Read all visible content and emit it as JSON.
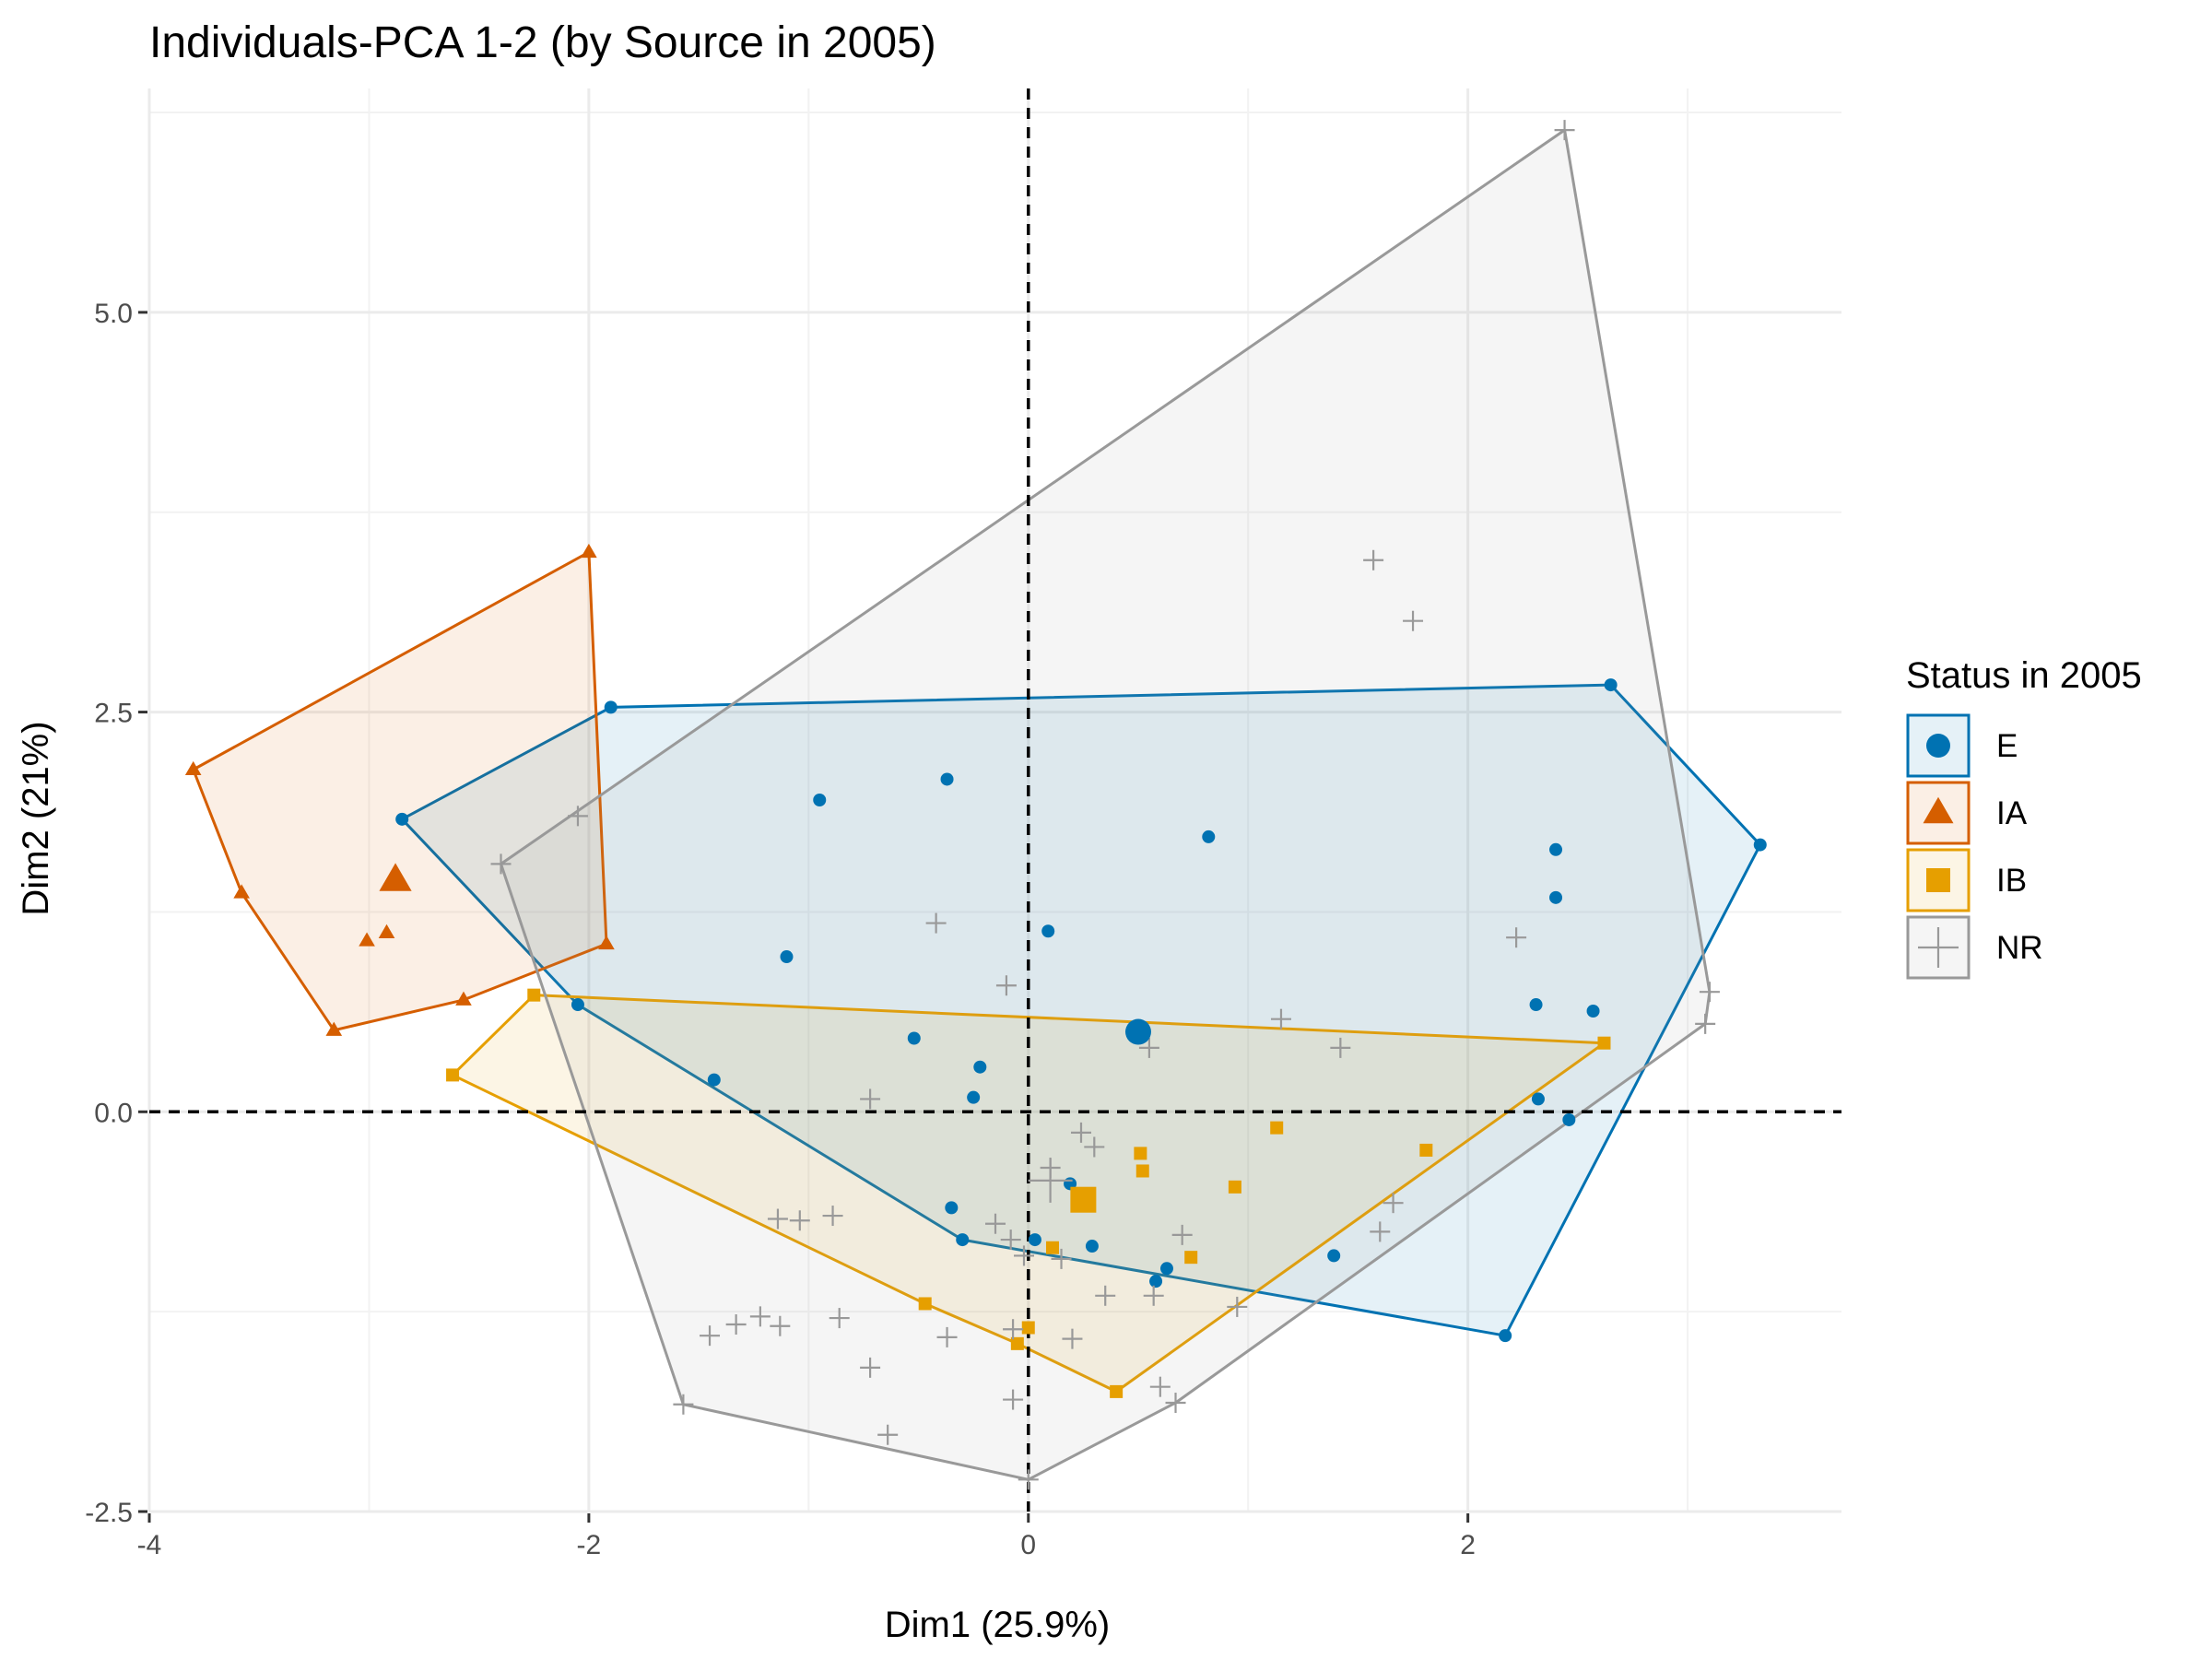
{
  "chart_data": {
    "type": "scatter",
    "title": "Individuals-PCA 1-2 (by Source in 2005)",
    "xlabel": "Dim1 (25.9%)",
    "ylabel": "Dim2 (21%)",
    "xlim": [
      -4.0,
      3.7
    ],
    "ylim": [
      -2.5,
      6.4
    ],
    "x_ticks": [
      -4,
      -2,
      0,
      2
    ],
    "x_tick_labels": [
      "-4",
      "-2",
      "0",
      "2"
    ],
    "y_ticks": [
      -2.5,
      0.0,
      2.5,
      5.0
    ],
    "y_tick_labels": [
      "-2.5",
      "0.0",
      "2.5",
      "5.0"
    ],
    "grid": true,
    "reference_lines": {
      "x": 0,
      "y": 0,
      "style": "dashed"
    },
    "legend": {
      "title": "Status in 2005",
      "position": "right",
      "entries": [
        "E",
        "IA",
        "IB",
        "NR"
      ]
    },
    "series": [
      {
        "name": "E",
        "color": "#0072B2",
        "marker": "circle",
        "centroid": [
          0.5,
          0.5
        ],
        "hull": [
          [
            -1.9,
            2.53
          ],
          [
            2.65,
            2.67
          ],
          [
            3.33,
            1.67
          ],
          [
            2.17,
            -1.4
          ],
          [
            -0.3,
            -0.8
          ],
          [
            -2.05,
            0.67
          ],
          [
            -2.85,
            1.83
          ]
        ],
        "points": [
          [
            -1.9,
            2.53
          ],
          [
            2.65,
            2.67
          ],
          [
            3.33,
            1.67
          ],
          [
            2.17,
            -1.4
          ],
          [
            -0.3,
            -0.8
          ],
          [
            -2.05,
            0.67
          ],
          [
            -2.85,
            1.83
          ],
          [
            -0.95,
            1.95
          ],
          [
            -0.37,
            2.08
          ],
          [
            0.82,
            1.72
          ],
          [
            0.09,
            1.13
          ],
          [
            -1.1,
            0.97
          ],
          [
            -1.43,
            0.2
          ],
          [
            -0.52,
            0.46
          ],
          [
            -0.22,
            0.28
          ],
          [
            -0.25,
            0.09
          ],
          [
            2.4,
            1.64
          ],
          [
            2.4,
            1.34
          ],
          [
            2.31,
            0.67
          ],
          [
            2.57,
            0.63
          ],
          [
            2.32,
            0.08
          ],
          [
            2.46,
            -0.05
          ],
          [
            0.19,
            -0.45
          ],
          [
            -0.35,
            -0.6
          ],
          [
            0.03,
            -0.8
          ],
          [
            0.29,
            -0.84
          ],
          [
            0.63,
            -0.98
          ],
          [
            0.58,
            -1.06
          ],
          [
            1.39,
            -0.9
          ]
        ]
      },
      {
        "name": "IA",
        "color": "#D55E00",
        "marker": "triangle",
        "centroid": [
          -2.88,
          1.45
        ],
        "hull": [
          [
            -2.0,
            3.5
          ],
          [
            -1.92,
            1.05
          ],
          [
            -2.57,
            0.7
          ],
          [
            -3.16,
            0.51
          ],
          [
            -3.58,
            1.37
          ],
          [
            -3.8,
            2.14
          ]
        ],
        "points": [
          [
            -2.0,
            3.5
          ],
          [
            -1.92,
            1.05
          ],
          [
            -2.57,
            0.7
          ],
          [
            -3.16,
            0.51
          ],
          [
            -3.58,
            1.37
          ],
          [
            -3.8,
            2.14
          ],
          [
            -2.92,
            1.12
          ],
          [
            -3.01,
            1.07
          ]
        ]
      },
      {
        "name": "IB",
        "color": "#E69F00",
        "marker": "square",
        "centroid": [
          0.25,
          -0.55
        ],
        "hull": [
          [
            -2.25,
            0.73
          ],
          [
            2.62,
            0.43
          ],
          [
            0.4,
            -1.75
          ],
          [
            -0.05,
            -1.45
          ],
          [
            -0.47,
            -1.2
          ],
          [
            -2.62,
            0.23
          ]
        ],
        "points": [
          [
            -2.25,
            0.73
          ],
          [
            2.62,
            0.43
          ],
          [
            0.4,
            -1.75
          ],
          [
            -0.05,
            -1.45
          ],
          [
            -0.47,
            -1.2
          ],
          [
            -2.62,
            0.23
          ],
          [
            1.13,
            -0.1
          ],
          [
            1.81,
            -0.24
          ],
          [
            0.51,
            -0.26
          ],
          [
            0.52,
            -0.37
          ],
          [
            0.94,
            -0.47
          ],
          [
            0.11,
            -0.85
          ],
          [
            0.74,
            -0.91
          ],
          [
            0.0,
            -1.35
          ]
        ]
      },
      {
        "name": "NR",
        "color": "#999999",
        "marker": "plus",
        "centroid": [
          0.1,
          -0.43
        ],
        "hull": [
          [
            2.44,
            6.14
          ],
          [
            3.1,
            0.75
          ],
          [
            3.08,
            0.55
          ],
          [
            0.67,
            -1.82
          ],
          [
            0.0,
            -2.3
          ],
          [
            -1.57,
            -1.83
          ],
          [
            -2.4,
            1.55
          ]
        ],
        "points": [
          [
            2.44,
            6.14
          ],
          [
            3.1,
            0.75
          ],
          [
            3.08,
            0.55
          ],
          [
            0.67,
            -1.82
          ],
          [
            0.0,
            -2.3
          ],
          [
            -1.57,
            -1.83
          ],
          [
            -2.4,
            1.55
          ],
          [
            1.57,
            3.45
          ],
          [
            1.75,
            3.07
          ],
          [
            -2.05,
            1.85
          ],
          [
            -0.42,
            1.18
          ],
          [
            -0.1,
            0.79
          ],
          [
            2.22,
            1.09
          ],
          [
            1.15,
            0.58
          ],
          [
            1.42,
            0.4
          ],
          [
            0.55,
            0.4
          ],
          [
            -0.72,
            0.08
          ],
          [
            0.24,
            -0.13
          ],
          [
            0.3,
            -0.22
          ],
          [
            0.1,
            -0.35
          ],
          [
            1.66,
            -0.57
          ],
          [
            1.6,
            -0.75
          ],
          [
            0.7,
            -0.77
          ],
          [
            -1.14,
            -0.67
          ],
          [
            -1.04,
            -0.68
          ],
          [
            -0.89,
            -0.65
          ],
          [
            -0.15,
            -0.7
          ],
          [
            -0.08,
            -0.8
          ],
          [
            -0.02,
            -0.9
          ],
          [
            0.15,
            -0.92
          ],
          [
            0.35,
            -1.15
          ],
          [
            0.57,
            -1.15
          ],
          [
            0.95,
            -1.22
          ],
          [
            -1.45,
            -1.4
          ],
          [
            -1.33,
            -1.33
          ],
          [
            -1.22,
            -1.28
          ],
          [
            -1.13,
            -1.34
          ],
          [
            -0.86,
            -1.29
          ],
          [
            -0.72,
            -1.6
          ],
          [
            -0.37,
            -1.41
          ],
          [
            -0.07,
            -1.36
          ],
          [
            0.2,
            -1.42
          ],
          [
            0.6,
            -1.72
          ],
          [
            -0.64,
            -2.02
          ],
          [
            -0.07,
            -1.8
          ]
        ]
      }
    ]
  }
}
